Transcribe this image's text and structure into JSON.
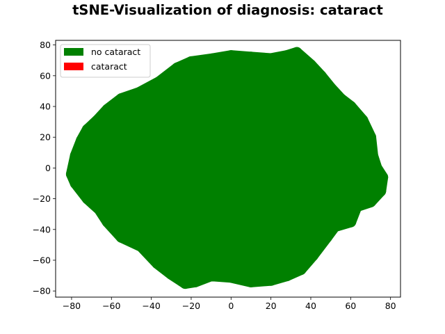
{
  "title": "tSNE-Visualization of diagnosis: cataract",
  "chart_data": {
    "type": "scatter",
    "title": "tSNE-Visualization of diagnosis: cataract",
    "xlabel": "",
    "ylabel": "",
    "xlim": [
      -88,
      85
    ],
    "ylim": [
      -84,
      83
    ],
    "xticks": [
      -80,
      -60,
      -40,
      -20,
      0,
      20,
      40,
      60,
      80
    ],
    "yticks": [
      -80,
      -60,
      -40,
      -20,
      0,
      20,
      40,
      60,
      80
    ],
    "xtick_labels": [
      "−80",
      "−60",
      "−40",
      "−20",
      "0",
      "20",
      "40",
      "60",
      "80"
    ],
    "ytick_labels": [
      "−80",
      "−60",
      "−40",
      "−20",
      "0",
      "20",
      "40",
      "60",
      "80"
    ],
    "grid": false,
    "legend_position": "top-left",
    "series": [
      {
        "name": "no cataract",
        "color": "#008000",
        "marker": "circle",
        "outline": [
          [
            -78,
            8
          ],
          [
            -75,
            18
          ],
          [
            -72,
            25
          ],
          [
            -67,
            31
          ],
          [
            -62,
            38
          ],
          [
            -55,
            45
          ],
          [
            -46,
            49
          ],
          [
            -36,
            56
          ],
          [
            -27,
            65
          ],
          [
            -20,
            69
          ],
          [
            -9,
            71
          ],
          [
            0,
            73
          ],
          [
            10,
            72
          ],
          [
            20,
            71
          ],
          [
            28,
            73
          ],
          [
            33,
            75
          ],
          [
            40,
            67
          ],
          [
            45,
            60
          ],
          [
            50,
            52
          ],
          [
            55,
            45
          ],
          [
            60,
            40
          ],
          [
            66,
            31
          ],
          [
            70,
            20
          ],
          [
            71,
            8
          ],
          [
            73,
            0
          ],
          [
            76,
            -6
          ],
          [
            75,
            -15
          ],
          [
            70,
            -22
          ],
          [
            63,
            -25
          ],
          [
            60,
            -35
          ],
          [
            52,
            -38
          ],
          [
            48,
            -45
          ],
          [
            41,
            -57
          ],
          [
            35,
            -66
          ],
          [
            28,
            -70
          ],
          [
            20,
            -73
          ],
          [
            10,
            -74
          ],
          [
            0,
            -71
          ],
          [
            -10,
            -70
          ],
          [
            -18,
            -74
          ],
          [
            -23,
            -75
          ],
          [
            -30,
            -69
          ],
          [
            -37,
            -62
          ],
          [
            -45,
            -51
          ],
          [
            -55,
            -45
          ],
          [
            -62,
            -35
          ],
          [
            -66,
            -27
          ],
          [
            -72,
            -20
          ],
          [
            -78,
            -10
          ],
          [
            -80,
            -4
          ]
        ],
        "note_points": []
      },
      {
        "name": "cataract",
        "color": "#ff0000",
        "marker": "circle",
        "points": []
      }
    ]
  }
}
